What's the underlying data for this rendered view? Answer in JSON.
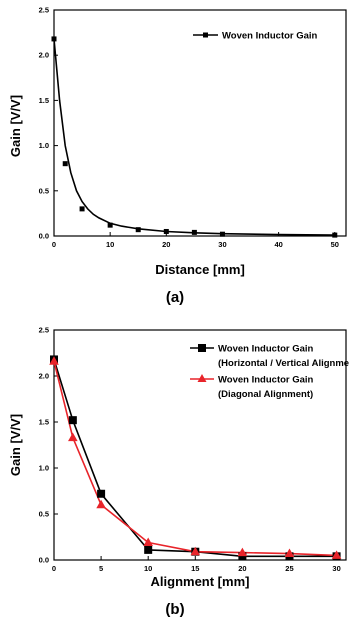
{
  "chart_data": [
    {
      "type": "scatter",
      "panel_label": "(a)",
      "xlabel": "Distance [mm]",
      "ylabel": "Gain [V/V]",
      "xlim": [
        0,
        52
      ],
      "ylim": [
        0,
        2.5
      ],
      "xticks": [
        0,
        10,
        20,
        30,
        40,
        50
      ],
      "yticks": [
        0.0,
        0.5,
        1.0,
        1.5,
        2.0,
        2.5
      ],
      "grid": false,
      "legend_position": "top-right",
      "series": [
        {
          "name": "Woven Inductor Gain",
          "color": "#000000",
          "marker": "square",
          "x": [
            0,
            2,
            5,
            10,
            15,
            20,
            25,
            30,
            50
          ],
          "y": [
            2.18,
            0.8,
            0.3,
            0.12,
            0.07,
            0.05,
            0.04,
            0.02,
            0.01
          ],
          "fit_curve": [
            [
              0,
              2.18
            ],
            [
              1,
              1.5
            ],
            [
              2,
              1.0
            ],
            [
              3,
              0.7
            ],
            [
              4,
              0.5
            ],
            [
              5,
              0.38
            ],
            [
              6,
              0.3
            ],
            [
              7,
              0.24
            ],
            [
              8,
              0.2
            ],
            [
              10,
              0.14
            ],
            [
              12,
              0.11
            ],
            [
              15,
              0.08
            ],
            [
              20,
              0.05
            ],
            [
              25,
              0.035
            ],
            [
              30,
              0.025
            ],
            [
              40,
              0.015
            ],
            [
              50,
              0.01
            ]
          ]
        }
      ]
    },
    {
      "type": "line",
      "panel_label": "(b)",
      "xlabel": "Alignment [mm]",
      "ylabel": "Gain [V/V]",
      "xlim": [
        0,
        31
      ],
      "ylim": [
        0,
        2.5
      ],
      "xticks": [
        0,
        5,
        10,
        15,
        20,
        25,
        30
      ],
      "yticks": [
        0.0,
        0.5,
        1.0,
        1.5,
        2.0,
        2.5
      ],
      "grid": false,
      "legend_position": "top-right",
      "series": [
        {
          "name": "Woven Inductor Gain",
          "name_line2": "(Horizontal / Vertical Alignment",
          "color": "#000000",
          "marker": "square",
          "x": [
            0,
            2,
            5,
            10,
            15,
            20,
            25,
            30
          ],
          "y": [
            2.18,
            1.52,
            0.72,
            0.11,
            0.09,
            0.04,
            0.04,
            0.04
          ]
        },
        {
          "name": "Woven Inductor Gain",
          "name_line2": "(Diagonal Alignment)",
          "color": "#e8242a",
          "marker": "triangle",
          "x": [
            0,
            2,
            5,
            10,
            15,
            20,
            25,
            30
          ],
          "y": [
            2.16,
            1.33,
            0.6,
            0.19,
            0.09,
            0.08,
            0.07,
            0.05
          ]
        }
      ]
    }
  ]
}
